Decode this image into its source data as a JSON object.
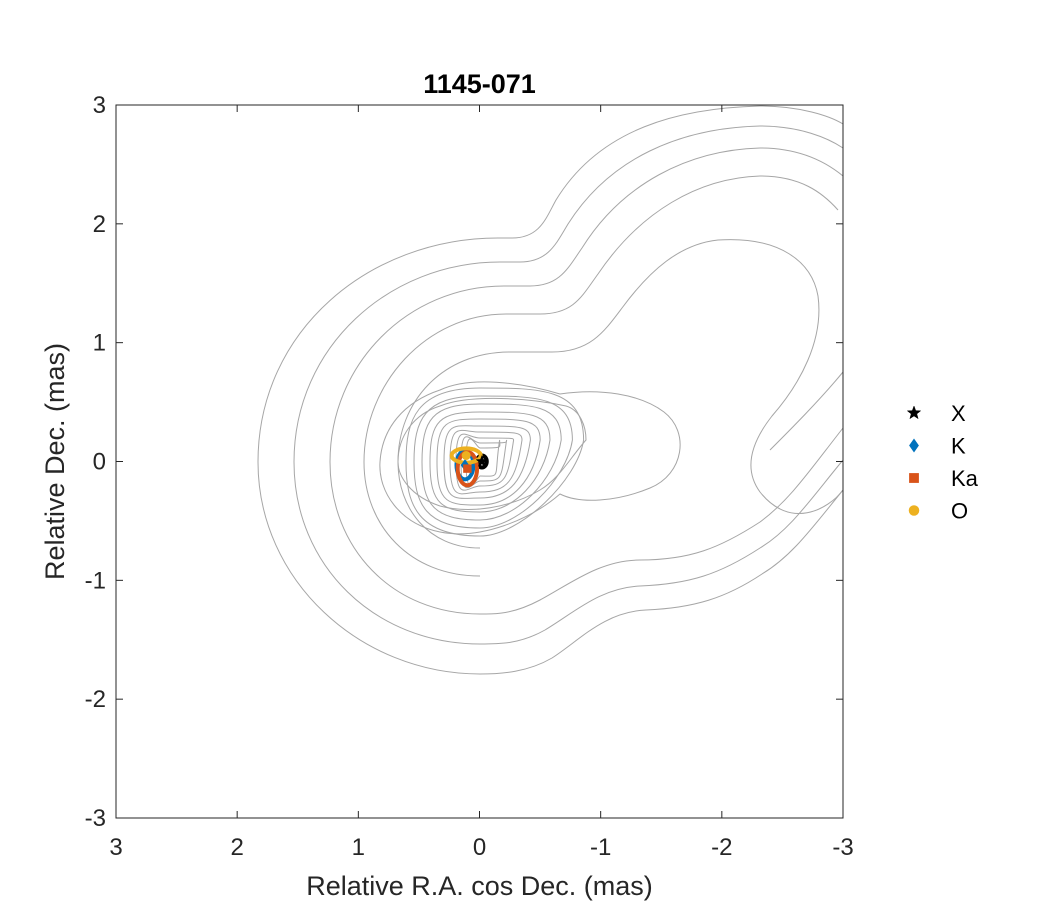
{
  "chart_data": {
    "type": "scatter",
    "title": "1145-071",
    "xlabel": "Relative R.A. cos Dec. (mas)",
    "ylabel": "Relative Dec. (mas)",
    "xlim": [
      3,
      -3
    ],
    "ylim": [
      -3,
      3
    ],
    "x_reversed": true,
    "xticks": [
      3,
      2,
      1,
      0,
      -1,
      -2,
      -3
    ],
    "xtick_labels": [
      "3",
      "2",
      "1",
      "0",
      "-1",
      "-2",
      "-3"
    ],
    "yticks": [
      3,
      2,
      1,
      0,
      -1,
      -2,
      -3
    ],
    "ytick_labels": [
      "3",
      "2",
      "1",
      "0",
      "-1",
      "-2",
      "-3"
    ],
    "grid": false,
    "legend_position": "outside-right",
    "contour_color": "#a6a6a6",
    "series": [
      {
        "name": "X",
        "marker": "star",
        "color": "#000000",
        "points": [
          {
            "x": -0.02,
            "y": 0.0
          }
        ],
        "ellipses": [
          {
            "x": -0.02,
            "y": 0.0,
            "rx": 0.04,
            "ry": 0.05
          }
        ]
      },
      {
        "name": "K",
        "marker": "diamond",
        "color": "#0072bd",
        "points": [
          {
            "x": 0.12,
            "y": -0.03
          }
        ],
        "ellipses": [
          {
            "x": 0.12,
            "y": -0.03,
            "rx": 0.07,
            "ry": 0.12
          }
        ]
      },
      {
        "name": "Ka",
        "marker": "square",
        "color": "#d95319",
        "points": [
          {
            "x": 0.1,
            "y": -0.06
          }
        ],
        "ellipses": [
          {
            "x": 0.1,
            "y": -0.06,
            "rx": 0.08,
            "ry": 0.14
          }
        ]
      },
      {
        "name": "O",
        "marker": "circle",
        "color": "#edb120",
        "points": [
          {
            "x": 0.11,
            "y": 0.05
          }
        ],
        "ellipses": [
          {
            "x": 0.11,
            "y": 0.05,
            "rx": 0.12,
            "ry": 0.06
          }
        ]
      }
    ]
  }
}
